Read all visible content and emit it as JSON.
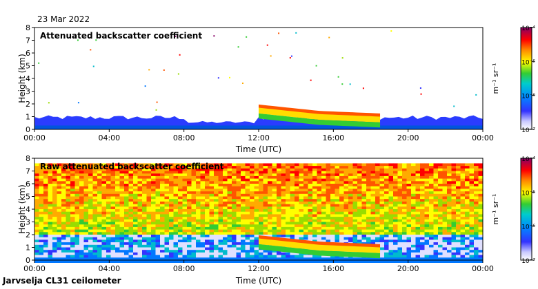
{
  "figure": {
    "date": "23 Mar 2022",
    "footer": "Jarvselja CL31 ceilometer"
  },
  "chart_data": [
    {
      "type": "heatmap",
      "title": "Attenuated backscatter coefficient",
      "xlabel": "Time (UTC)",
      "ylabel": "Height (km)",
      "x_ticks": [
        "00:00",
        "04:00",
        "08:00",
        "12:00",
        "16:00",
        "20:00",
        "00:00"
      ],
      "x_range_hours": [
        0,
        24
      ],
      "y_ticks": [
        0,
        1,
        2,
        3,
        4,
        5,
        6,
        7,
        8
      ],
      "ylim": [
        0,
        8
      ],
      "colorbar": {
        "label": "m⁻¹ sr⁻¹",
        "ticks": [
          "10⁻⁷",
          "10⁻⁶",
          "10⁻⁵",
          "10⁻⁴"
        ],
        "scale": "log"
      },
      "features": {
        "boundary_layer_top_km": 1.0,
        "cloud_layer": {
          "start_hour": 12.0,
          "end_hour": 18.5,
          "base_km": [
            1.6,
            1.1,
            0.9
          ],
          "colors": [
            "#ff5500",
            "#ffdd00",
            "#33cc33"
          ]
        }
      }
    },
    {
      "type": "heatmap",
      "title": "Raw attenuated backscatter coefficient",
      "xlabel": "Time (UTC)",
      "ylabel": "Height (km)",
      "x_ticks": [
        "00:00",
        "04:00",
        "08:00",
        "12:00",
        "16:00",
        "20:00",
        "00:00"
      ],
      "x_range_hours": [
        0,
        24
      ],
      "y_ticks": [
        0,
        1,
        2,
        3,
        4,
        5,
        6,
        7,
        8
      ],
      "ylim": [
        0,
        8
      ],
      "colorbar": {
        "label": "m⁻¹ sr⁻¹",
        "ticks": [
          "10⁻⁷",
          "10⁻⁶",
          "10⁻⁵",
          "10⁻⁴"
        ],
        "scale": "log"
      },
      "features": {
        "noise_top_km": 7.7,
        "cloud_layer": {
          "start_hour": 12.0,
          "end_hour": 18.5,
          "base_km": [
            1.6,
            1.1,
            0.9
          ],
          "colors": [
            "#ff5500",
            "#ffdd00",
            "#33cc33"
          ]
        }
      }
    }
  ]
}
